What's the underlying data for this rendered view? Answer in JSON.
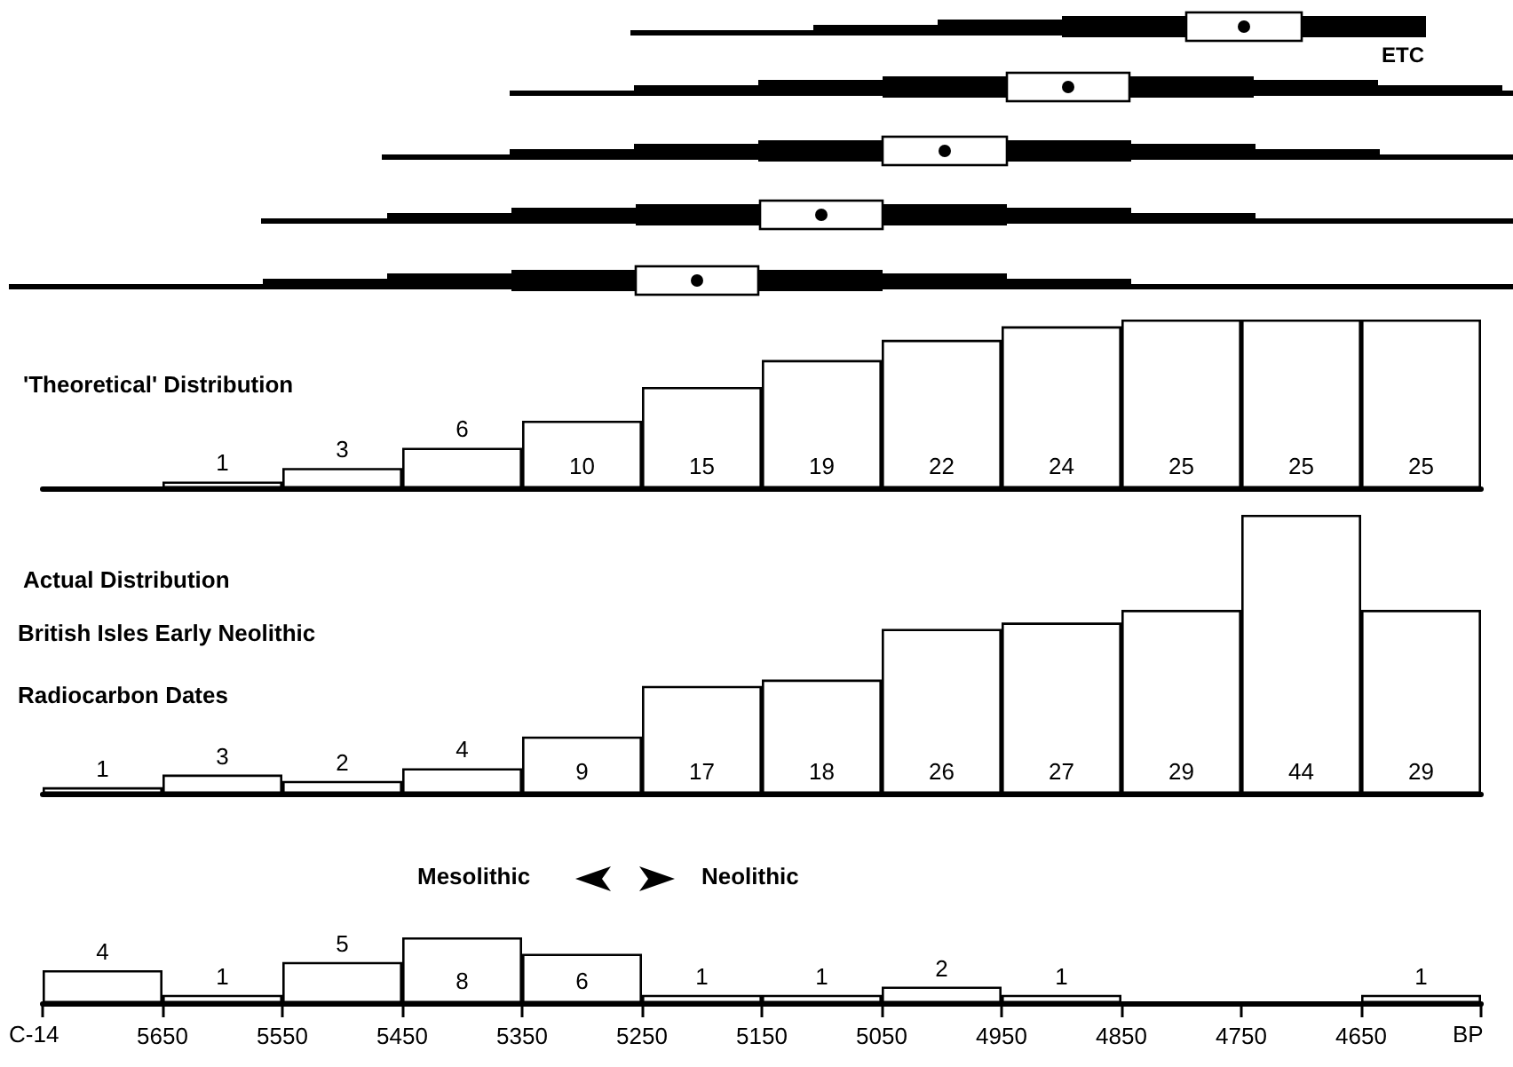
{
  "chart_data": [
    {
      "type": "other",
      "annotations": [
        "ETC"
      ]
    },
    {
      "type": "bar",
      "title": "'Theoretical' Distribution",
      "x": [
        5600,
        5500,
        5400,
        5300,
        5200,
        5100,
        5000,
        4900,
        4800,
        4700,
        4600
      ],
      "values": [
        1,
        3,
        6,
        10,
        15,
        19,
        22,
        24,
        25,
        25,
        25
      ],
      "color": "#ffffff",
      "data_labels": true,
      "xlim": [
        5750,
        4550
      ],
      "xticks": [
        5650,
        5550,
        5450,
        5350,
        5250,
        5150,
        5050,
        4950,
        4850,
        4750,
        4650
      ],
      "tick_labels": false
    },
    {
      "type": "bar",
      "title": "Actual Distribution",
      "annotations": [
        "British Isles Early Neolithic",
        "Radiocarbon Dates"
      ],
      "x": [
        5700,
        5600,
        5500,
        5400,
        5300,
        5200,
        5100,
        5000,
        4900,
        4800,
        4700,
        4600
      ],
      "values": [
        1,
        3,
        2,
        4,
        9,
        17,
        18,
        26,
        27,
        29,
        44,
        29
      ],
      "color": "#ffffff",
      "data_labels": true,
      "xlim": [
        5750,
        4550
      ],
      "xticks": [
        5650,
        5550,
        5450,
        5350,
        5250,
        5150,
        5050,
        4950,
        4850,
        4750,
        4650
      ],
      "tick_labels": false
    },
    {
      "type": "bar",
      "annotations": [
        "Mesolithic",
        "Neolithic",
        "C-14",
        "BP"
      ],
      "x": [
        5700,
        5600,
        5500,
        5400,
        5300,
        5200,
        5100,
        5000,
        4900,
        4800,
        4700,
        4600
      ],
      "values": [
        4,
        1,
        5,
        8,
        6,
        1,
        1,
        2,
        1,
        null,
        null,
        1
      ],
      "value_labels": [
        "4",
        "1",
        "5",
        "8",
        "6",
        "1",
        "1",
        "2",
        "1",
        null,
        null,
        "1"
      ],
      "color": "#ffffff",
      "xlim": [
        5750,
        4550
      ],
      "xticks": [
        5650,
        5550,
        5450,
        5350,
        5250,
        5150,
        5050,
        4950,
        4850,
        4750,
        4650
      ]
    }
  ]
}
